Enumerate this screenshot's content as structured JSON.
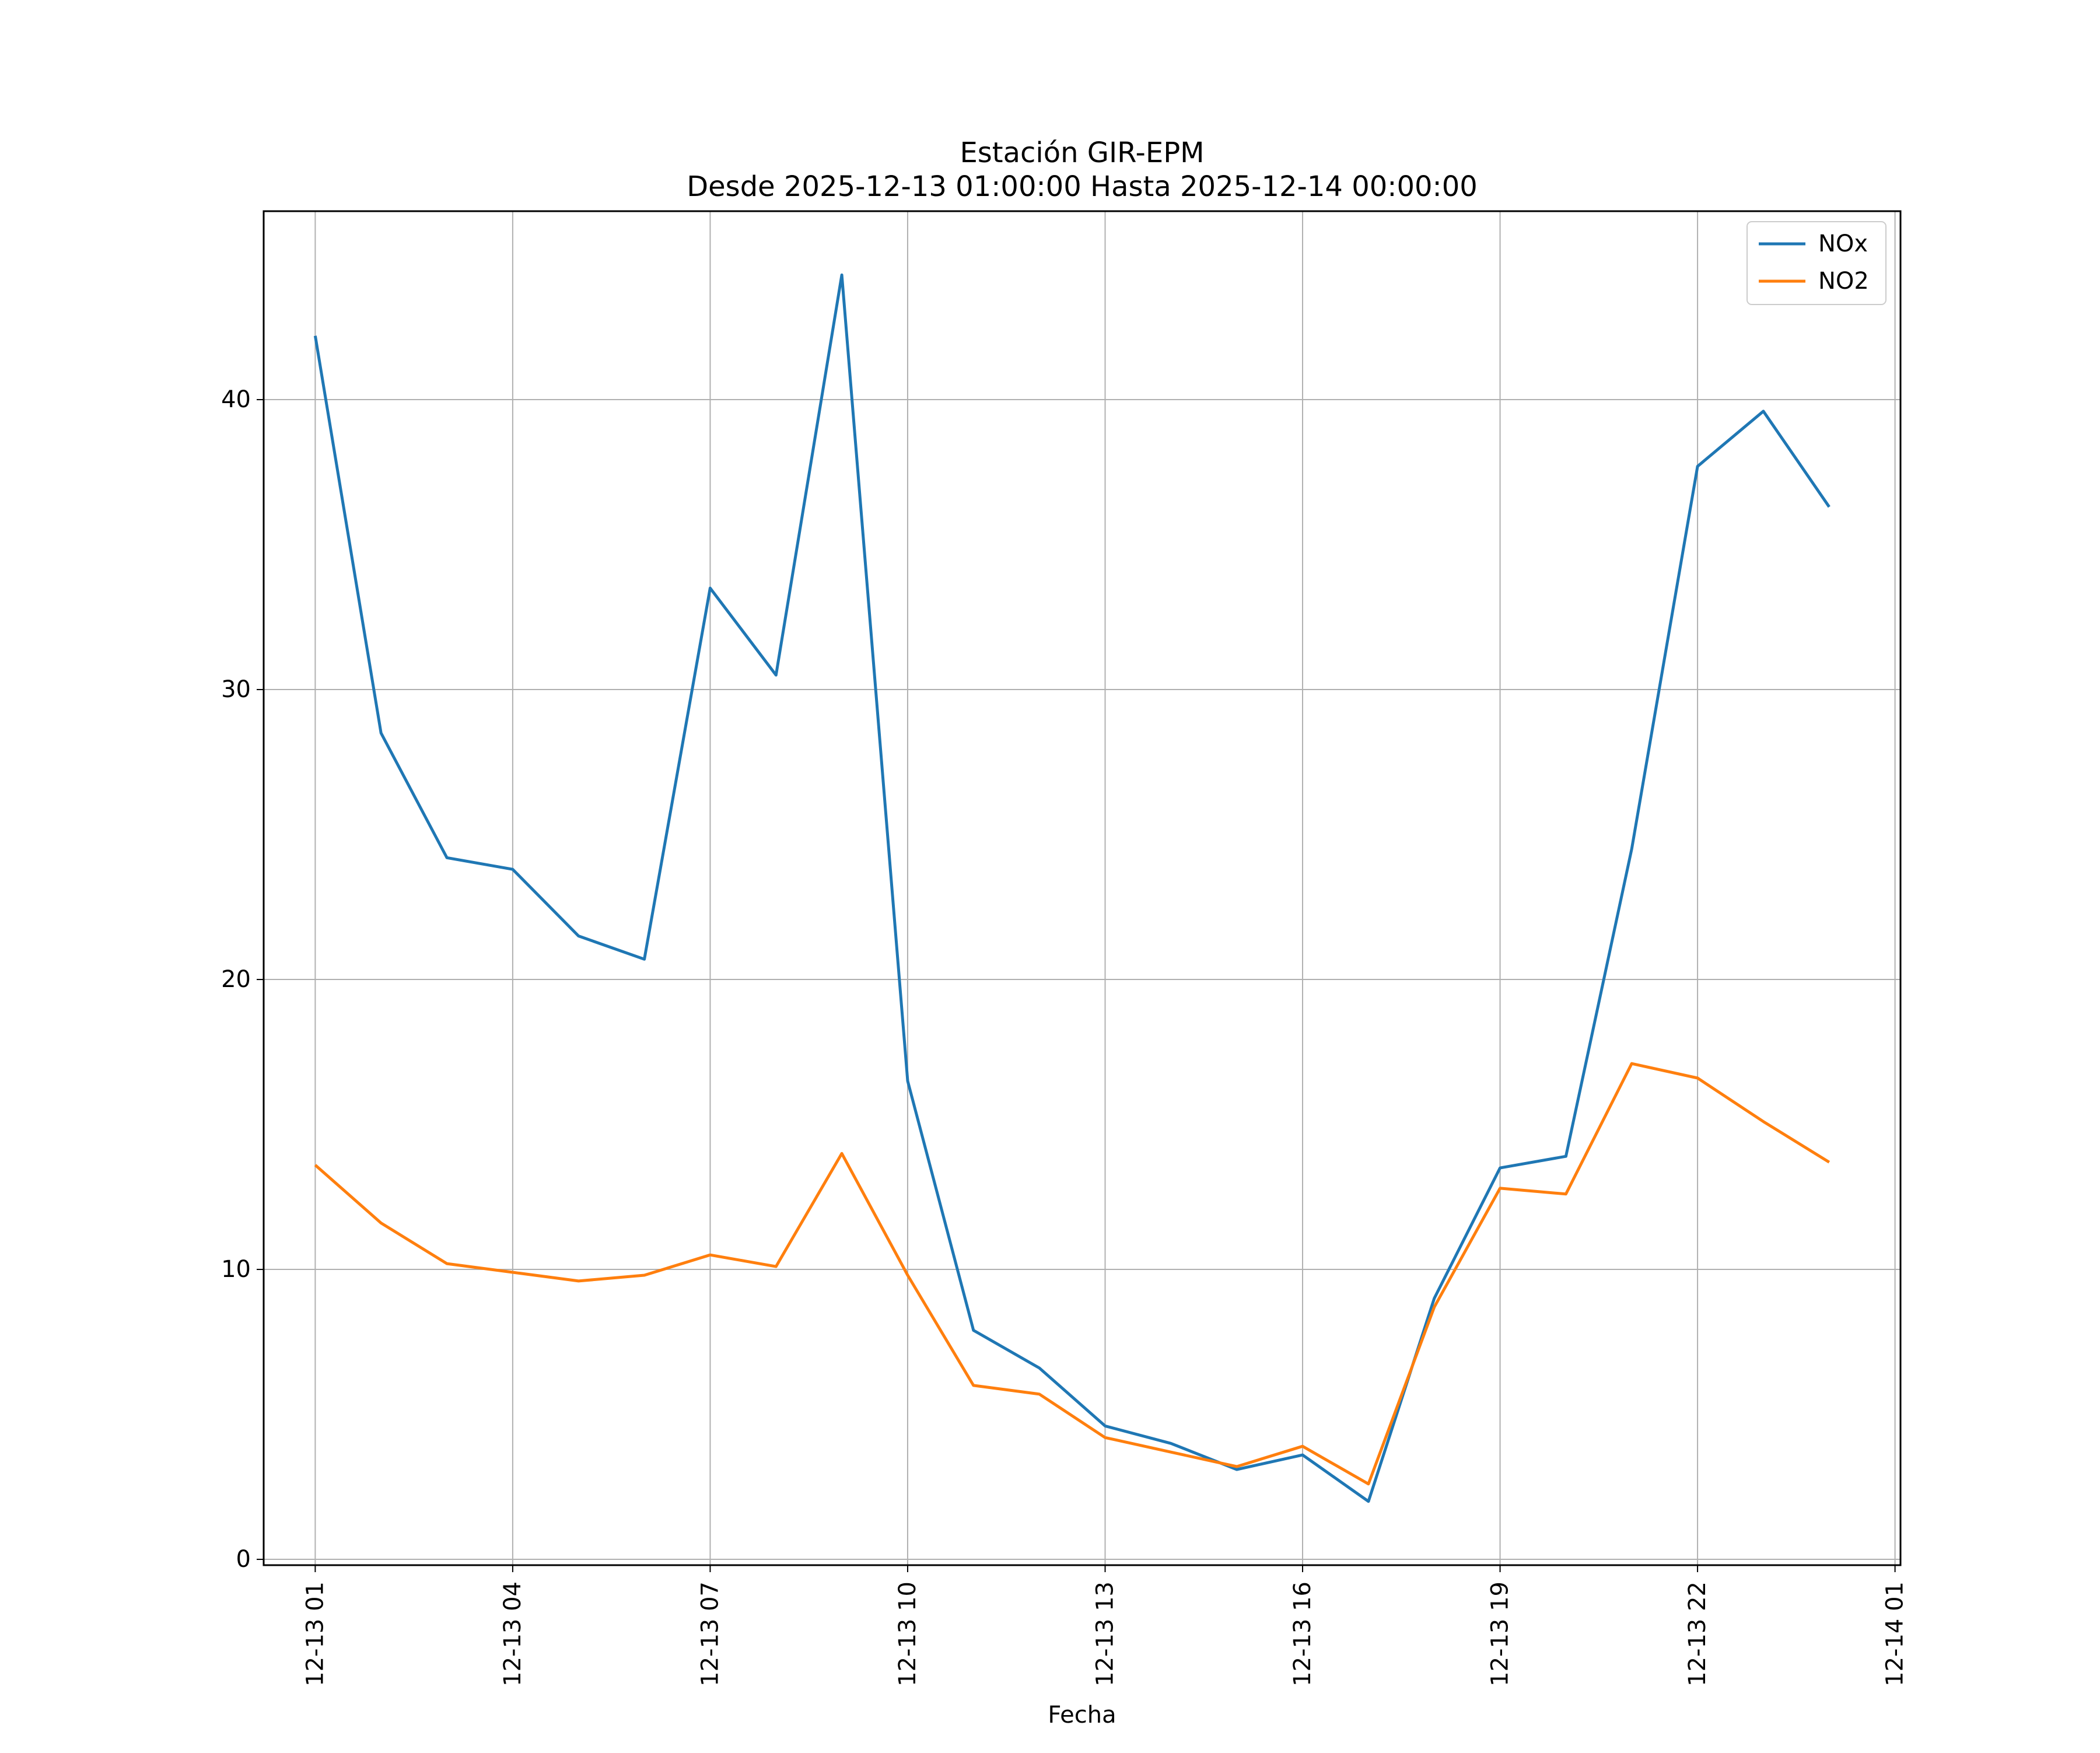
{
  "chart_data": {
    "type": "line",
    "title": "Estación GIR-EPM",
    "subtitle": "Desde 2025-12-13 01:00:00 Hasta 2025-12-14 00:00:00",
    "xlabel": "Fecha",
    "ylabel": "",
    "x": [
      "2025-12-13 01:00",
      "2025-12-13 02:00",
      "2025-12-13 03:00",
      "2025-12-13 04:00",
      "2025-12-13 05:00",
      "2025-12-13 06:00",
      "2025-12-13 07:00",
      "2025-12-13 08:00",
      "2025-12-13 09:00",
      "2025-12-13 10:00",
      "2025-12-13 11:00",
      "2025-12-13 12:00",
      "2025-12-13 13:00",
      "2025-12-13 14:00",
      "2025-12-13 15:00",
      "2025-12-13 16:00",
      "2025-12-13 17:00",
      "2025-12-13 18:00",
      "2025-12-13 19:00",
      "2025-12-13 20:00",
      "2025-12-13 21:00",
      "2025-12-13 22:00",
      "2025-12-13 23:00",
      "2025-12-14 00:00"
    ],
    "xlim": [
      "2025-12-13 00:13",
      "2025-12-14 01:05"
    ],
    "xticks": [
      {
        "label": "12-13 01",
        "value": "2025-12-13 01:00"
      },
      {
        "label": "12-13 04",
        "value": "2025-12-13 04:00"
      },
      {
        "label": "12-13 07",
        "value": "2025-12-13 07:00"
      },
      {
        "label": "12-13 10",
        "value": "2025-12-13 10:00"
      },
      {
        "label": "12-13 13",
        "value": "2025-12-13 13:00"
      },
      {
        "label": "12-13 16",
        "value": "2025-12-13 16:00"
      },
      {
        "label": "12-13 19",
        "value": "2025-12-13 19:00"
      },
      {
        "label": "12-13 22",
        "value": "2025-12-13 22:00"
      },
      {
        "label": "12-14 01",
        "value": "2025-12-14 01:00"
      }
    ],
    "ylim": [
      -0.2,
      46.5
    ],
    "yticks": [
      0,
      10,
      20,
      30,
      40
    ],
    "ytick_labels": [
      "0",
      "10",
      "20",
      "30",
      "40"
    ],
    "grid": true,
    "legend_position": "top-right",
    "series": [
      {
        "name": "NOx",
        "color": "#1f77b4",
        "values": [
          42.2,
          28.5,
          24.2,
          23.8,
          21.5,
          20.7,
          33.5,
          30.5,
          44.3,
          16.5,
          7.9,
          6.6,
          4.6,
          4.0,
          3.1,
          3.6,
          2.0,
          9.0,
          13.5,
          13.9,
          24.5,
          37.7,
          39.6,
          36.3
        ]
      },
      {
        "name": "NO2",
        "color": "#ff7f0e",
        "values": [
          13.6,
          11.6,
          10.2,
          9.9,
          9.6,
          9.8,
          10.5,
          10.1,
          14.0,
          9.8,
          6.0,
          5.7,
          4.2,
          3.7,
          3.2,
          3.9,
          2.6,
          8.7,
          12.8,
          12.6,
          17.1,
          16.6,
          15.1,
          13.7
        ]
      }
    ]
  }
}
